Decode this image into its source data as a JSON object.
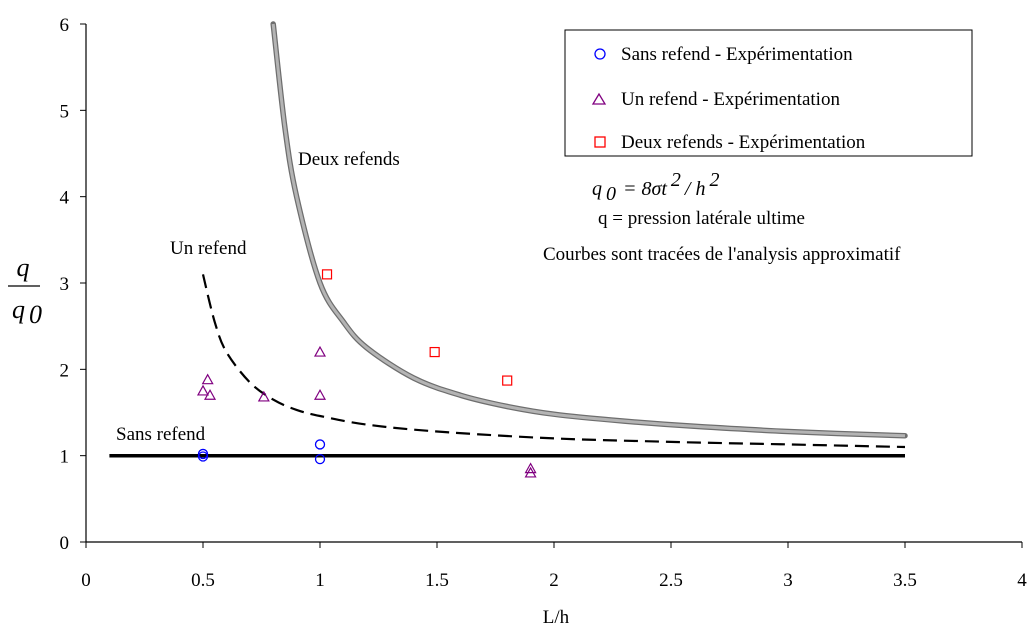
{
  "chart_data": {
    "type": "line",
    "xlabel": "L/h",
    "ylabel": "q / q0",
    "ylabel_parts": {
      "num": "q",
      "den": "q",
      "den_sub": "0"
    },
    "xlim": [
      0,
      4
    ],
    "ylim": [
      0,
      6
    ],
    "xticks": [
      "0",
      "0.5",
      "1",
      "1.5",
      "2",
      "2.5",
      "3",
      "3.5",
      "4"
    ],
    "xtick_values": [
      0,
      0.5,
      1,
      1.5,
      2,
      2.5,
      3,
      3.5,
      4
    ],
    "yticks": [
      "0",
      "1",
      "2",
      "3",
      "4",
      "5",
      "6"
    ],
    "ytick_values": [
      0,
      1,
      2,
      3,
      4,
      5,
      6
    ],
    "grid": false,
    "legend_placement": "top-right",
    "curves": [
      {
        "id": "deux",
        "label": "Deux refends",
        "style": "thick-gray",
        "color": "#8a8a8a",
        "x": [
          0.8,
          0.85,
          0.9,
          1.0,
          1.1,
          1.2,
          1.4,
          1.6,
          1.8,
          2.0,
          2.3,
          2.6,
          3.0,
          3.5
        ],
        "y": [
          6.0,
          4.8,
          4.0,
          3.0,
          2.55,
          2.25,
          1.9,
          1.7,
          1.57,
          1.48,
          1.4,
          1.34,
          1.28,
          1.23
        ]
      },
      {
        "id": "un",
        "label": "Un refend",
        "style": "dashed",
        "color": "#000000",
        "x": [
          0.5,
          0.55,
          0.6,
          0.7,
          0.8,
          0.9,
          1.0,
          1.2,
          1.5,
          2.0,
          2.5,
          3.0,
          3.5
        ],
        "y": [
          3.1,
          2.55,
          2.2,
          1.85,
          1.65,
          1.53,
          1.46,
          1.36,
          1.28,
          1.2,
          1.16,
          1.13,
          1.1
        ]
      },
      {
        "id": "sans",
        "label": "Sans refend",
        "style": "thick-black",
        "color": "#000000",
        "x": [
          0.1,
          3.5
        ],
        "y": [
          1.0,
          1.0
        ]
      }
    ],
    "series": [
      {
        "name": "Sans refend - Expérimentation",
        "marker": "circle",
        "color": "#0000ff",
        "points": [
          [
            0.5,
            1.02
          ],
          [
            0.5,
            0.99
          ],
          [
            1.0,
            1.13
          ],
          [
            1.0,
            0.96
          ]
        ]
      },
      {
        "name": "Un refend - Expérimentation",
        "marker": "triangle",
        "color": "#800080",
        "points": [
          [
            0.5,
            1.75
          ],
          [
            0.52,
            1.88
          ],
          [
            0.53,
            1.7
          ],
          [
            0.76,
            1.68
          ],
          [
            1.0,
            2.2
          ],
          [
            1.0,
            1.7
          ],
          [
            1.9,
            0.85
          ],
          [
            1.9,
            0.8
          ]
        ]
      },
      {
        "name": "Deux refends - Expérimentation",
        "marker": "square",
        "color": "#ff0000",
        "points": [
          [
            1.03,
            3.1
          ],
          [
            1.49,
            2.2
          ],
          [
            1.8,
            1.87
          ]
        ]
      }
    ],
    "annotations": {
      "formula": "q0 = 8σt² / h²",
      "formula_parts": {
        "lhs": "q",
        "lhs_sub": "0",
        "rhs": "= 8σt",
        "rhs_sup": "2",
        "slash": " / h",
        "tail_sup": "2"
      },
      "pressure_note": "q = pression latérale ultime",
      "curves_note": "Courbes sont tracées de l'analysis approximatif"
    }
  }
}
